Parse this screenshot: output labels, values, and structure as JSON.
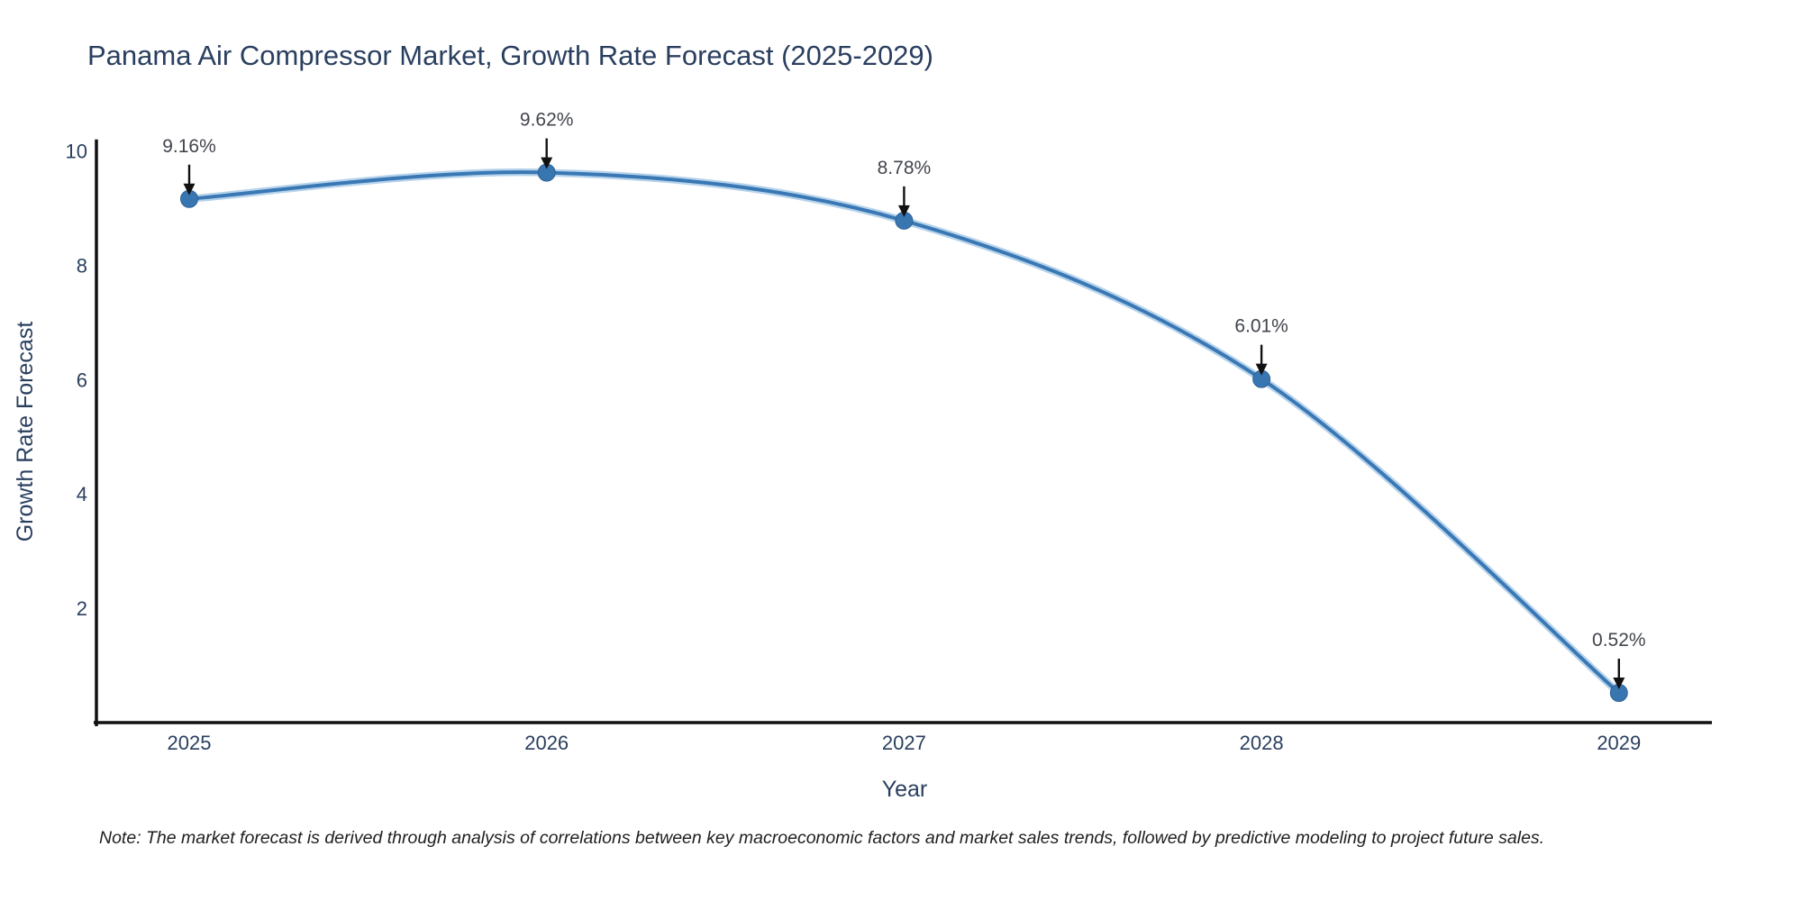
{
  "figure": {
    "note": "Note: The market forecast is derived through analysis of correlations between key macroeconomic factors and market sales trends, followed by predictive modeling to project future sales."
  },
  "chart_data": {
    "type": "line",
    "title": "Panama Air Compressor Market, Growth Rate Forecast (2025-2029)",
    "xlabel": "Year",
    "ylabel": "Growth Rate Forecast",
    "x": [
      2025,
      2026,
      2027,
      2028,
      2029
    ],
    "series": [
      {
        "name": "Growth Rate Forecast",
        "values": [
          9.16,
          9.62,
          8.78,
          6.01,
          0.52
        ]
      }
    ],
    "point_labels": [
      "9.16%",
      "9.62%",
      "8.78%",
      "6.01%",
      "0.52%"
    ],
    "xtick_labels": [
      "2025",
      "2026",
      "2027",
      "2028",
      "2029"
    ],
    "ytick_values": [
      2,
      4,
      6,
      8,
      10
    ],
    "ylim": [
      0,
      10.2
    ],
    "grid": false,
    "legend": "none",
    "line_shape": "spline",
    "colors": {
      "line": "#3a78b5",
      "line_halo": "#a9cbe8",
      "marker_fill": "#3876b2",
      "marker_edge": "#2e6193",
      "axis": "#111111",
      "tick_text": "#2a3f5f",
      "annotation_text": "#42454d",
      "arrow": "#111111"
    }
  }
}
